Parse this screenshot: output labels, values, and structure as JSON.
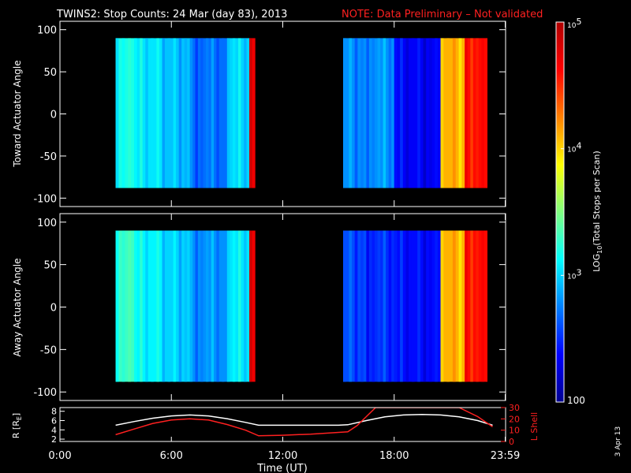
{
  "title": {
    "main": "TWINS2: Stop Counts: 24 Mar (day  83), 2013",
    "note": "NOTE: Data Preliminary – Not validated",
    "note_color": "#ff2020"
  },
  "stamp": "3 Apr 13",
  "chart_data": [
    {
      "type": "heatmap",
      "id": "toward",
      "ylabel": "Toward Actuator Angle",
      "ylim": [
        -110,
        110
      ],
      "yticks": [
        100,
        50,
        0,
        -50,
        -100
      ],
      "xlim": [
        0,
        24
      ],
      "scan_blocks_hours": [
        [
          3.0,
          10.5
        ],
        [
          15.25,
          23.0
        ]
      ],
      "angle_range": [
        -88,
        90
      ],
      "log10_counts_by_hour": [
        {
          "t_start": 3.0,
          "t_end": 4.0,
          "log10_counts": 3.2
        },
        {
          "t_start": 4.0,
          "t_end": 5.5,
          "log10_counts": 3.05
        },
        {
          "t_start": 5.5,
          "t_end": 7.0,
          "log10_counts": 2.95
        },
        {
          "t_start": 7.0,
          "t_end": 9.0,
          "log10_counts": 2.7
        },
        {
          "t_start": 9.0,
          "t_end": 10.2,
          "log10_counts": 3.0
        },
        {
          "t_start": 10.2,
          "t_end": 10.5,
          "log10_counts": 4.7
        },
        {
          "t_start": 15.25,
          "t_end": 16.5,
          "log10_counts": 2.8
        },
        {
          "t_start": 16.5,
          "t_end": 18.0,
          "log10_counts": 2.8
        },
        {
          "t_start": 18.0,
          "t_end": 20.5,
          "log10_counts": 2.35
        },
        {
          "t_start": 20.5,
          "t_end": 21.8,
          "log10_counts": 4.1
        },
        {
          "t_start": 21.8,
          "t_end": 23.0,
          "log10_counts": 4.6
        }
      ]
    },
    {
      "type": "heatmap",
      "id": "away",
      "ylabel": "Away Actuator Angle",
      "ylim": [
        -110,
        110
      ],
      "yticks": [
        100,
        50,
        0,
        -50,
        -100
      ],
      "xlim": [
        0,
        24
      ],
      "scan_blocks_hours": [
        [
          3.0,
          10.5
        ],
        [
          15.25,
          23.0
        ]
      ],
      "angle_range": [
        -88,
        90
      ],
      "log10_counts_by_hour": [
        {
          "t_start": 3.0,
          "t_end": 4.0,
          "log10_counts": 3.3
        },
        {
          "t_start": 4.0,
          "t_end": 5.5,
          "log10_counts": 3.1
        },
        {
          "t_start": 5.5,
          "t_end": 7.0,
          "log10_counts": 3.0
        },
        {
          "t_start": 7.0,
          "t_end": 9.0,
          "log10_counts": 2.8
        },
        {
          "t_start": 9.0,
          "t_end": 10.2,
          "log10_counts": 3.05
        },
        {
          "t_start": 10.2,
          "t_end": 10.5,
          "log10_counts": 4.7
        },
        {
          "t_start": 15.25,
          "t_end": 16.5,
          "log10_counts": 2.6
        },
        {
          "t_start": 16.5,
          "t_end": 18.0,
          "log10_counts": 2.5
        },
        {
          "t_start": 18.0,
          "t_end": 20.5,
          "log10_counts": 2.4
        },
        {
          "t_start": 20.5,
          "t_end": 21.8,
          "log10_counts": 4.1
        },
        {
          "t_start": 21.8,
          "t_end": 23.0,
          "log10_counts": 4.6
        }
      ]
    },
    {
      "type": "line",
      "id": "orbit",
      "ylabel_left": "R [R",
      "ylabel_left_sub": "E",
      "ylabel_left_close": "]",
      "ylabel_right": "L Shell",
      "yticks_left": [
        8,
        6,
        4,
        2
      ],
      "ylim_left": [
        1.5,
        8.8
      ],
      "yticks_right": [
        30,
        20,
        10,
        0
      ],
      "ylim_right": [
        0,
        30
      ],
      "xlabel": "Time (UT)",
      "xticks": [
        {
          "hour": 0,
          "label": "0:00"
        },
        {
          "hour": 6,
          "label": "6:00"
        },
        {
          "hour": 12,
          "label": "12:00"
        },
        {
          "hour": 18,
          "label": "18:00"
        },
        {
          "hour": 23.98,
          "label": "23:59"
        }
      ],
      "series": [
        {
          "axis": "left",
          "color": "#ffffff",
          "x": [
            3.0,
            4.0,
            5.0,
            6.0,
            7.0,
            8.0,
            9.0,
            10.0,
            10.7,
            12.0,
            13.5,
            15.0,
            15.5,
            16.5,
            17.5,
            18.5,
            19.5,
            20.5,
            21.5,
            22.5,
            23.3
          ],
          "y": [
            5.0,
            5.8,
            6.5,
            7.0,
            7.2,
            7.0,
            6.4,
            5.6,
            5.0,
            5.0,
            5.0,
            5.0,
            5.1,
            6.0,
            6.8,
            7.2,
            7.3,
            7.2,
            6.8,
            6.0,
            5.0
          ]
        },
        {
          "axis": "right",
          "color": "#ff2020",
          "x": [
            3.0,
            4.0,
            5.0,
            6.0,
            7.0,
            8.0,
            9.0,
            10.0,
            10.7,
            12.0,
            13.5,
            15.0,
            15.5,
            16.0,
            16.5,
            17.0,
            21.5,
            22.5,
            23.3
          ],
          "y": [
            6,
            11,
            16,
            19,
            20,
            19,
            15,
            10,
            5,
            5.5,
            6.5,
            8,
            8.5,
            14,
            22,
            30,
            30,
            22,
            13
          ]
        }
      ]
    }
  ],
  "colorbar": {
    "label": "LOG",
    "label_sub": "10",
    "label_rest": "(Total Stops per Scan)",
    "min_log10": 2,
    "max_log10": 5,
    "ticks": [
      {
        "log10": 5,
        "base": "10",
        "exp": "5"
      },
      {
        "log10": 4,
        "base": "10",
        "exp": "4"
      },
      {
        "log10": 3,
        "base": "10",
        "exp": "3"
      },
      {
        "log10": 2,
        "base": "100",
        "exp": ""
      }
    ],
    "colors": [
      "#00008f",
      "#0000ff",
      "#0080ff",
      "#00ffff",
      "#80ff80",
      "#ffff00",
      "#ff8000",
      "#ff0000",
      "#b00000"
    ]
  }
}
